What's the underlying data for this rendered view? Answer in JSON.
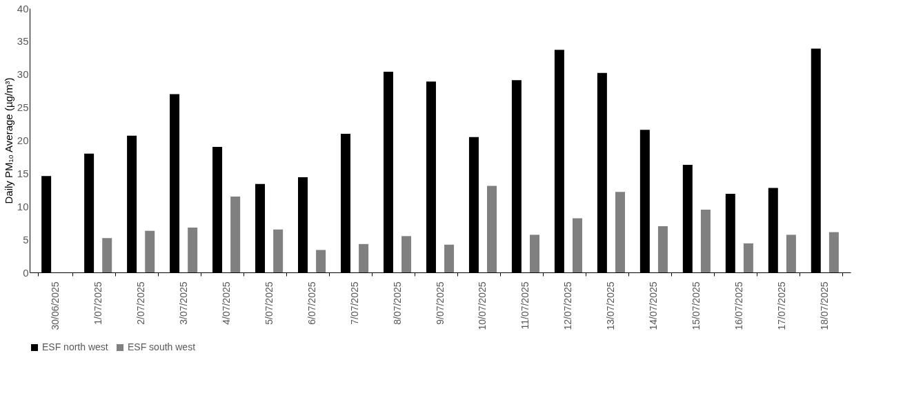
{
  "chart_data": {
    "type": "bar",
    "ylabel": "Daily PM₁₀ Average (µg/m³)",
    "categories": [
      "30/06/2025",
      "1/07/2025",
      "2/07/2025",
      "3/07/2025",
      "4/07/2025",
      "5/07/2025",
      "6/07/2025",
      "7/07/2025",
      "8/07/2025",
      "9/07/2025",
      "10/07/2025",
      "11/07/2025",
      "12/07/2025",
      "13/07/2025",
      "14/07/2025",
      "15/07/2025",
      "16/07/2025",
      "17/07/2025",
      "18/07/2025"
    ],
    "series": [
      {
        "name": "ESF north west",
        "color": "#000000",
        "values": [
          14.6,
          18.0,
          20.7,
          27.0,
          19.0,
          13.4,
          14.4,
          21.0,
          30.4,
          28.9,
          20.5,
          29.1,
          33.7,
          30.2,
          21.6,
          16.3,
          11.9,
          12.8,
          33.9
        ]
      },
      {
        "name": "ESF south west",
        "color": "#808080",
        "values": [
          null,
          5.2,
          6.3,
          6.8,
          11.5,
          6.5,
          3.4,
          4.3,
          5.5,
          4.2,
          13.1,
          5.7,
          8.2,
          12.2,
          7.0,
          9.5,
          4.4,
          5.7,
          6.1
        ]
      }
    ],
    "ylim": [
      0,
      40
    ],
    "yticks": [
      0,
      5,
      10,
      15,
      20,
      25,
      30,
      35,
      40
    ],
    "grid": false,
    "legend": "bottom"
  }
}
